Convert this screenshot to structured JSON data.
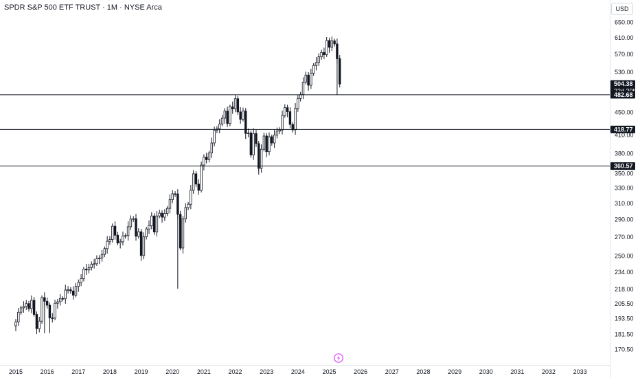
{
  "title": "SPDR S&P 500 ETF TRUST · 1M · NYSE Arca",
  "currency": "USD",
  "colors": {
    "candle": "#131722",
    "level_line": "#131722",
    "label_bg": "#131722",
    "label_text": "#ffffff",
    "axis_text": "#131722",
    "brand": "#e040fb"
  },
  "chart_data": {
    "type": "candlestick",
    "title": "SPDR S&P 500 ETF TRUST · 1M · NYSE Arca",
    "y_scale": "log",
    "ylim": [
      163,
      660
    ],
    "xlim": [
      "2014-12",
      "2033-06"
    ],
    "y_ticks": [
      "650.00",
      "610.00",
      "570.00",
      "530.00",
      "450.00",
      "410.00",
      "380.00",
      "350.00",
      "330.00",
      "310.00",
      "290.00",
      "270.00",
      "250.00",
      "234.00",
      "218.00",
      "205.50",
      "193.50",
      "181.50",
      "170.50"
    ],
    "x_ticks": [
      "2015",
      "2016",
      "2017",
      "2018",
      "2019",
      "2020",
      "2021",
      "2022",
      "2023",
      "2024",
      "2025",
      "2026",
      "2027",
      "2028",
      "2029",
      "2030",
      "2031",
      "2032",
      "2033"
    ],
    "price_labels": [
      {
        "value": 504.38,
        "text": "504.38",
        "sub": "22d 20h"
      },
      {
        "value": 482.68,
        "text": "482.68"
      },
      {
        "value": 418.77,
        "text": "418.77"
      },
      {
        "value": 360.57,
        "text": "360.57"
      }
    ],
    "horizontal_levels": [
      482.68,
      418.77,
      360.57
    ],
    "closes": [
      190.5,
      198.3,
      201.9,
      203.0,
      205.4,
      201.2,
      208.2,
      196.5,
      185.4,
      191.2,
      210.5,
      207.4,
      204.1,
      193.7,
      193.6,
      205.7,
      206.9,
      209.8,
      209.5,
      217.1,
      217.4,
      216.3,
      212.6,
      220.4,
      224.0,
      227.5,
      236.5,
      235.7,
      238.1,
      241.4,
      241.8,
      246.8,
      247.5,
      251.2,
      257.2,
      265.0,
      266.9,
      281.9,
      271.7,
      263.2,
      264.5,
      270.9,
      271.3,
      281.3,
      290.3,
      290.7,
      270.6,
      275.6,
      250.0,
      270.0,
      278.7,
      282.5,
      294.0,
      275.3,
      294.0,
      297.4,
      292.5,
      297.0,
      303.3,
      314.3,
      321.9,
      321.7,
      296.0,
      257.8,
      290.5,
      304.3,
      308.4,
      326.5,
      349.3,
      334.9,
      326.5,
      362.1,
      373.9,
      370.1,
      380.4,
      396.3,
      417.3,
      420.0,
      428.1,
      438.5,
      451.6,
      429.1,
      459.3,
      455.6,
      474.9,
      449.9,
      436.6,
      451.6,
      412.0,
      412.9,
      377.3,
      411.9,
      395.2,
      357.2,
      386.2,
      407.7,
      382.4,
      406.5,
      396.3,
      409.4,
      415.9,
      417.9,
      443.3,
      457.8,
      450.4,
      427.5,
      418.2,
      456.4,
      475.3,
      482.9,
      508.1,
      523.1,
      501.9,
      527.4,
      544.2,
      550.8,
      563.7,
      573.8,
      568.6,
      602.6,
      586.1,
      601.8,
      594.2,
      559.4,
      504.4
    ]
  }
}
